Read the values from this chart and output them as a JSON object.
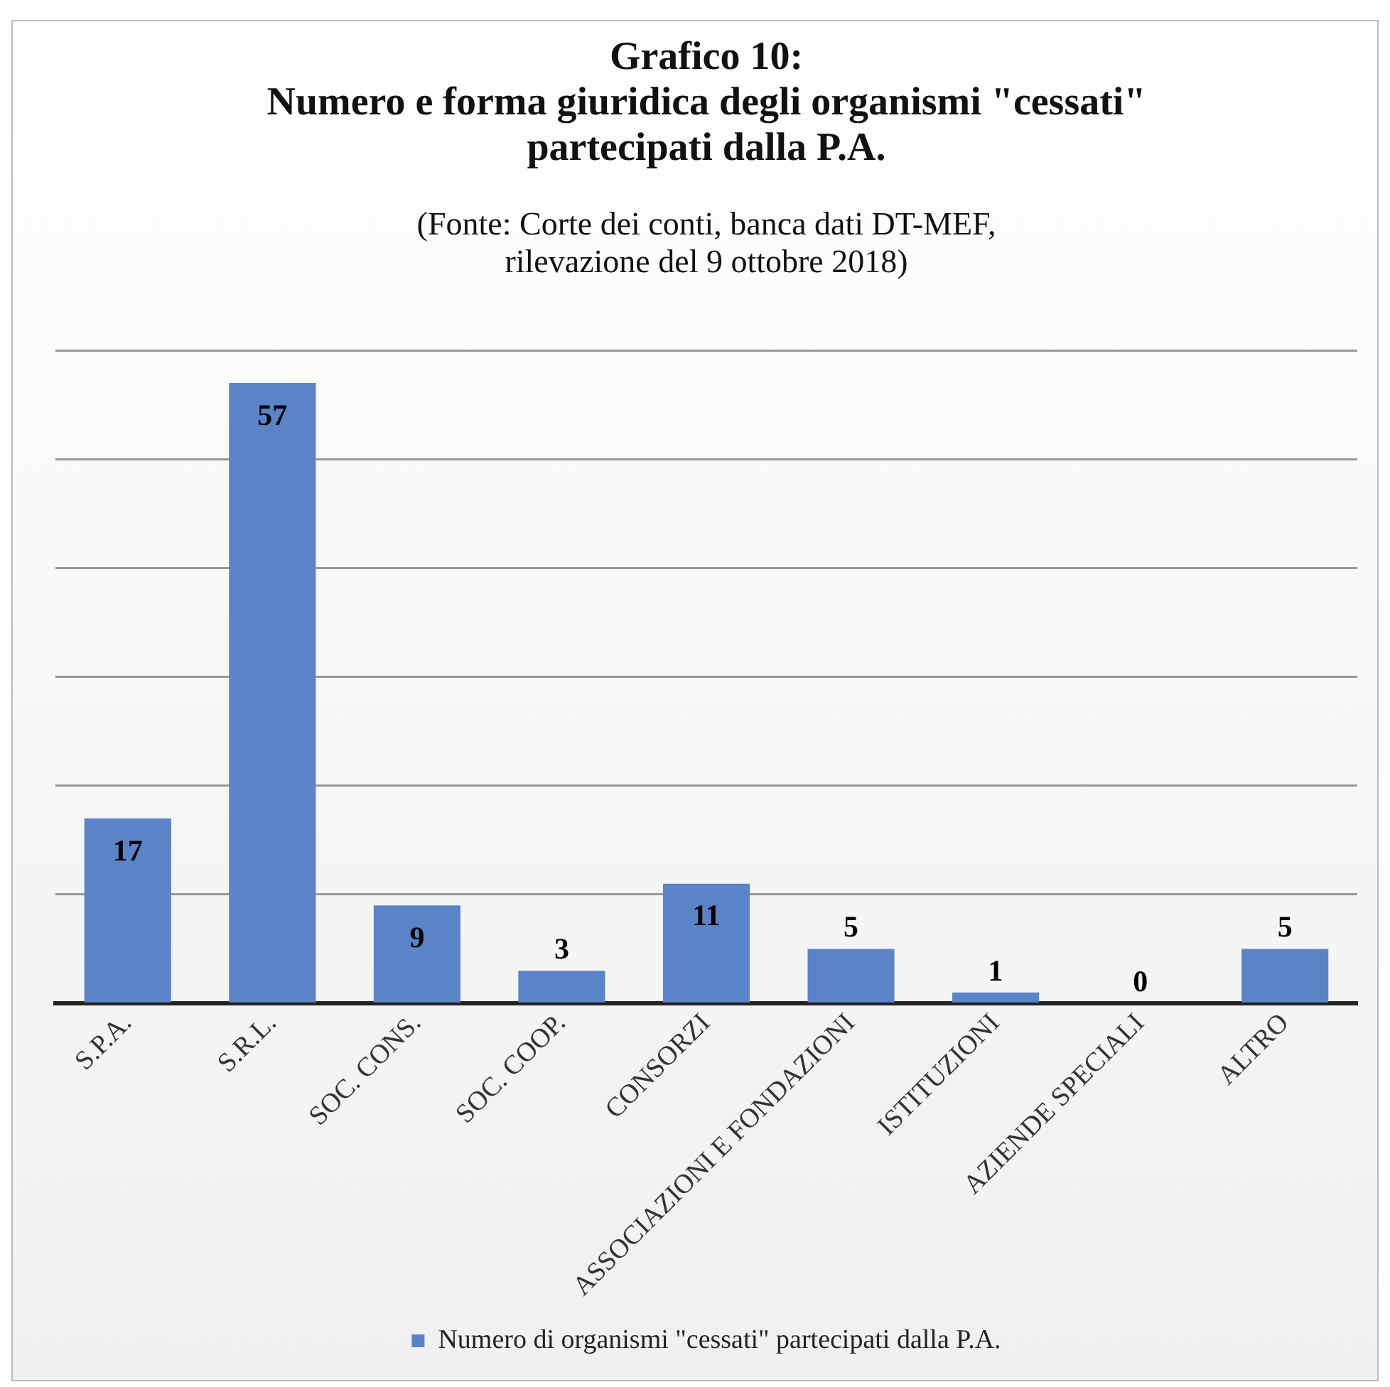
{
  "chart_data": {
    "type": "bar",
    "title": "Grafico 10:\nNumero e forma giuridica degli organismi \"cessati\"\npartecipati dalla P.A.",
    "subtitle": "(Fonte: Corte dei conti, banca dati DT-MEF,\nrilevazione del 9 ottobre 2018)",
    "categories": [
      "S.P.A.",
      "S.R.L.",
      "SOC. CONS.",
      "SOC. COOP.",
      "CONSORZI",
      "ASSOCIAZIONI E FONDAZIONI",
      "ISTITUZIONI",
      "AZIENDE SPECIALI",
      "ALTRO"
    ],
    "series": [
      {
        "name": "Numero di organismi \"cessati\" partecipati dalla P.A.",
        "color": "#5b84c8",
        "values": [
          17,
          57,
          9,
          3,
          11,
          5,
          1,
          0,
          5
        ]
      }
    ],
    "ylim": [
      0,
      60
    ],
    "yticks": [
      {
        "value": 0,
        "label": null
      },
      {
        "value": 10,
        "label": null
      },
      {
        "value": 20,
        "label": null
      },
      {
        "value": 30,
        "label": null
      },
      {
        "value": 40,
        "label": null
      },
      {
        "value": 50,
        "label": null
      },
      {
        "value": 60,
        "label": null
      }
    ],
    "grid": "y",
    "tick_labels": "x",
    "legend": "bottom",
    "data_labels": true
  }
}
